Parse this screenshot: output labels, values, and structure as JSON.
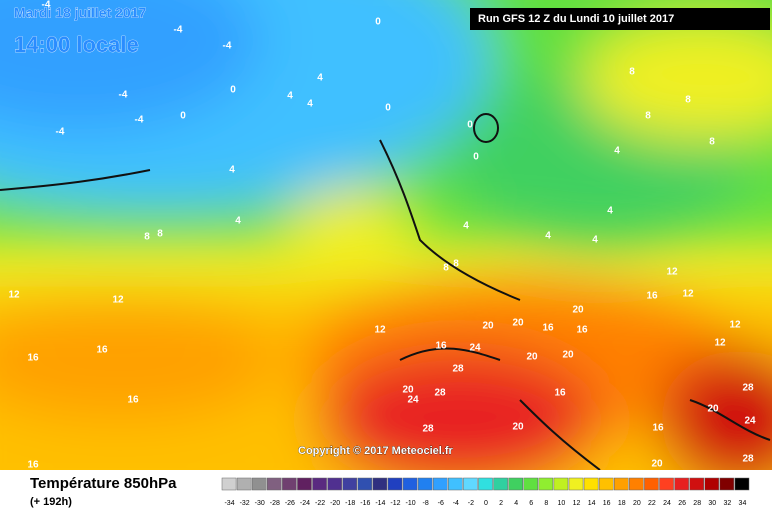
{
  "header": {
    "date": "Mardi 18 juillet 2017",
    "time": "14:00 locale",
    "run": "Run GFS 12 Z du Lundi 10 juillet 2017"
  },
  "copyright": "Copyright © 2017 Meteociel.fr",
  "footer": {
    "title": "Température 850hPa",
    "subtitle": "(+ 192h)"
  },
  "scale": {
    "labels": [
      -34,
      -32,
      -30,
      -28,
      -26,
      -24,
      -22,
      -20,
      -18,
      -16,
      -14,
      -12,
      -10,
      -8,
      -6,
      -4,
      -2,
      0,
      2,
      4,
      6,
      8,
      10,
      12,
      14,
      16,
      18,
      20,
      22,
      24,
      26,
      28,
      30,
      32,
      34
    ],
    "colors": [
      "#d0d0d0",
      "#b0b0b0",
      "#909090",
      "#806080",
      "#704070",
      "#602060",
      "#5a2a80",
      "#503090",
      "#4040a0",
      "#3050b0",
      "#303080",
      "#2040c0",
      "#2060e0",
      "#2080f0",
      "#30a0ff",
      "#40c0ff",
      "#60d8ff",
      "#30e0e0",
      "#30d0a0",
      "#40d060",
      "#60e040",
      "#90ee30",
      "#c0f020",
      "#f0f020",
      "#ffe000",
      "#ffc000",
      "#ffa000",
      "#ff8000",
      "#ff6000",
      "#ff4020",
      "#e82020",
      "#d01010",
      "#b00000",
      "#800000",
      "#000000"
    ]
  },
  "contour_labels": [
    -4,
    -4,
    -4,
    -4,
    -4,
    -4,
    0,
    0,
    0,
    0,
    0,
    0,
    4,
    4,
    4,
    4,
    4,
    4,
    4,
    4,
    4,
    4,
    8,
    8,
    8,
    8,
    8,
    8,
    8,
    8,
    12,
    12,
    12,
    12,
    12,
    12,
    12,
    16,
    16,
    16,
    16,
    16,
    16,
    16,
    16,
    16,
    16,
    20,
    20,
    20,
    20,
    20,
    20,
    20,
    20,
    20,
    24,
    24,
    24,
    28,
    28,
    28,
    28,
    28
  ]
}
